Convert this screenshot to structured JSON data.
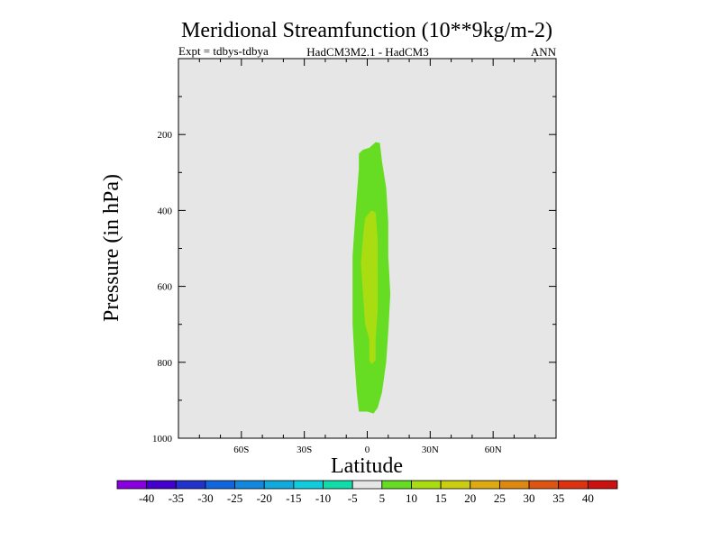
{
  "chart_data": {
    "type": "contour",
    "title": "Meridional Streamfunction (10**9kg/m-2)",
    "subtitle_left": "Expt = tdbys-tdbya",
    "subtitle_center": "HadCM3M2.1 - HadCM3",
    "subtitle_right": "ANN",
    "xlabel": "Latitude",
    "ylabel": "Pressure (in hPa)",
    "xlim": [
      -90,
      90
    ],
    "ylim": [
      0,
      1000
    ],
    "y_inverted": true,
    "x_ticks": [
      {
        "value": -60,
        "label": "60S"
      },
      {
        "value": -30,
        "label": "30S"
      },
      {
        "value": 0,
        "label": "0"
      },
      {
        "value": 30,
        "label": "30N"
      },
      {
        "value": 60,
        "label": "60N"
      }
    ],
    "y_ticks": [
      {
        "value": 200,
        "label": "200"
      },
      {
        "value": 400,
        "label": "400"
      },
      {
        "value": 600,
        "label": "600"
      },
      {
        "value": 800,
        "label": "800"
      },
      {
        "value": 1000,
        "label": "1000"
      }
    ],
    "background_color": "#e6e6e6",
    "regions": [
      {
        "level": "5 to 10",
        "color": "#66dd22",
        "outline": [
          [
            -4,
            930
          ],
          [
            -5,
            880
          ],
          [
            -6,
            800
          ],
          [
            -7,
            700
          ],
          [
            -7,
            600
          ],
          [
            -7,
            520
          ],
          [
            -6,
            440
          ],
          [
            -5,
            360
          ],
          [
            -4,
            290
          ],
          [
            -4,
            250
          ],
          [
            -2,
            240
          ],
          [
            1,
            235
          ],
          [
            4,
            220
          ],
          [
            6,
            222
          ],
          [
            7,
            270
          ],
          [
            9,
            340
          ],
          [
            10,
            430
          ],
          [
            10,
            520
          ],
          [
            11,
            620
          ],
          [
            10,
            720
          ],
          [
            9,
            800
          ],
          [
            7,
            880
          ],
          [
            5,
            920
          ],
          [
            3,
            935
          ],
          [
            0,
            930
          ]
        ]
      },
      {
        "level": "10 to 15",
        "color": "#aadd11",
        "outline": [
          [
            -1,
            700
          ],
          [
            -2,
            620
          ],
          [
            -3,
            540
          ],
          [
            -2,
            470
          ],
          [
            -1,
            420
          ],
          [
            2,
            400
          ],
          [
            4,
            405
          ],
          [
            5,
            480
          ],
          [
            5,
            560
          ],
          [
            5,
            660
          ],
          [
            4,
            740
          ],
          [
            4,
            795
          ],
          [
            2,
            805
          ],
          [
            1,
            795
          ],
          [
            1,
            740
          ]
        ]
      }
    ],
    "colorbar": {
      "labels": [
        "-40",
        "-35",
        "-30",
        "-25",
        "-20",
        "-15",
        "-10",
        "-5",
        "5",
        "10",
        "15",
        "20",
        "25",
        "30",
        "35",
        "40"
      ],
      "colors": [
        "#8800dd",
        "#4400cc",
        "#2233cc",
        "#1166dd",
        "#1188dd",
        "#11aadd",
        "#11ccdd",
        "#11ddaa",
        "#e6e6e6",
        "#66dd22",
        "#aadd11",
        "#cccc11",
        "#ddaa11",
        "#dd8811",
        "#dd5511",
        "#dd3311",
        "#cc1111"
      ]
    }
  }
}
